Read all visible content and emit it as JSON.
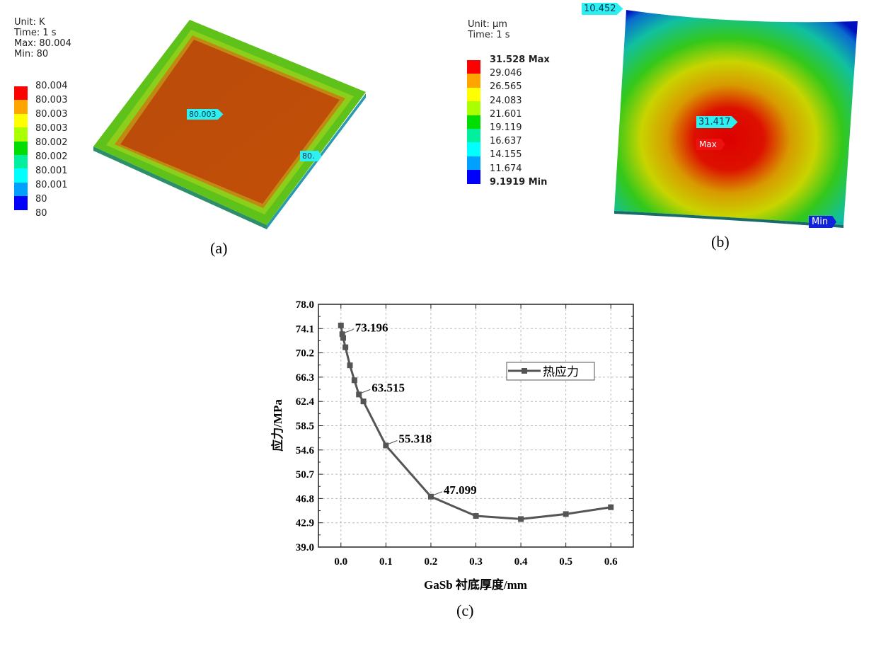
{
  "panel_a": {
    "caption": "(a)",
    "info": [
      "Unit: K",
      "Time: 1 s",
      "Max: 80.004",
      "Min: 80"
    ],
    "legend_labels": [
      "80.004",
      "80.003",
      "80.003",
      "80.003",
      "80.002",
      "80.002",
      "80.001",
      "80.001",
      "80",
      "80"
    ],
    "legend_colors": [
      "#ff0000",
      "#ffa500",
      "#ffff00",
      "#aaff00",
      "#00dd00",
      "#00f0a0",
      "#00ffff",
      "#00a0ff",
      "#0000ff"
    ],
    "probe_center": "80.003",
    "probe_edge": "80."
  },
  "panel_b": {
    "caption": "(b)",
    "info": [
      "Unit: µm",
      "Time: 1 s"
    ],
    "legend_labels": [
      "31.528 Max",
      "29.046",
      "26.565",
      "24.083",
      "21.601",
      "19.119",
      "16.637",
      "14.155",
      "11.674",
      "9.1919 Min"
    ],
    "legend_colors": [
      "#ff0000",
      "#ffa500",
      "#ffff00",
      "#aaff00",
      "#00dd00",
      "#00f0a0",
      "#00ffff",
      "#00a0ff",
      "#0000ff"
    ],
    "probe_corner": "10.452",
    "probe_center": "31.417",
    "max_tag": "Max",
    "min_tag": "Min"
  },
  "panel_c": {
    "caption": "(c)"
  },
  "chart_data": {
    "type": "line",
    "title": "",
    "xlabel": "GaSb 衬底厚度/mm",
    "ylabel": "应力/MPa",
    "xlim": [
      -0.05,
      0.65
    ],
    "ylim": [
      39.0,
      78.0
    ],
    "xticks": [
      "0.0",
      "0.1",
      "0.2",
      "0.3",
      "0.4",
      "0.5",
      "0.6"
    ],
    "yticks": [
      "78.0",
      "74.1",
      "70.2",
      "66.3",
      "62.4",
      "58.5",
      "54.6",
      "50.7",
      "46.8",
      "42.9",
      "39.0"
    ],
    "grid": true,
    "legend_placement": "top-right",
    "series": [
      {
        "name": "热应力",
        "color": "#555555",
        "x": [
          0,
          0.003,
          0.005,
          0.01,
          0.02,
          0.03,
          0.04,
          0.05,
          0.1,
          0.2,
          0.3,
          0.4,
          0.5,
          0.6
        ],
        "y": [
          74.6,
          73.196,
          72.6,
          71.1,
          68.2,
          65.8,
          63.515,
          62.4,
          55.318,
          47.099,
          44.0,
          43.5,
          44.3,
          45.4
        ]
      }
    ],
    "annotations": [
      {
        "text": "73.196",
        "x": 0.003,
        "y": 73.196
      },
      {
        "text": "63.515",
        "x": 0.04,
        "y": 63.515
      },
      {
        "text": "55.318",
        "x": 0.1,
        "y": 55.318
      },
      {
        "text": "47.099",
        "x": 0.2,
        "y": 47.099
      }
    ]
  }
}
